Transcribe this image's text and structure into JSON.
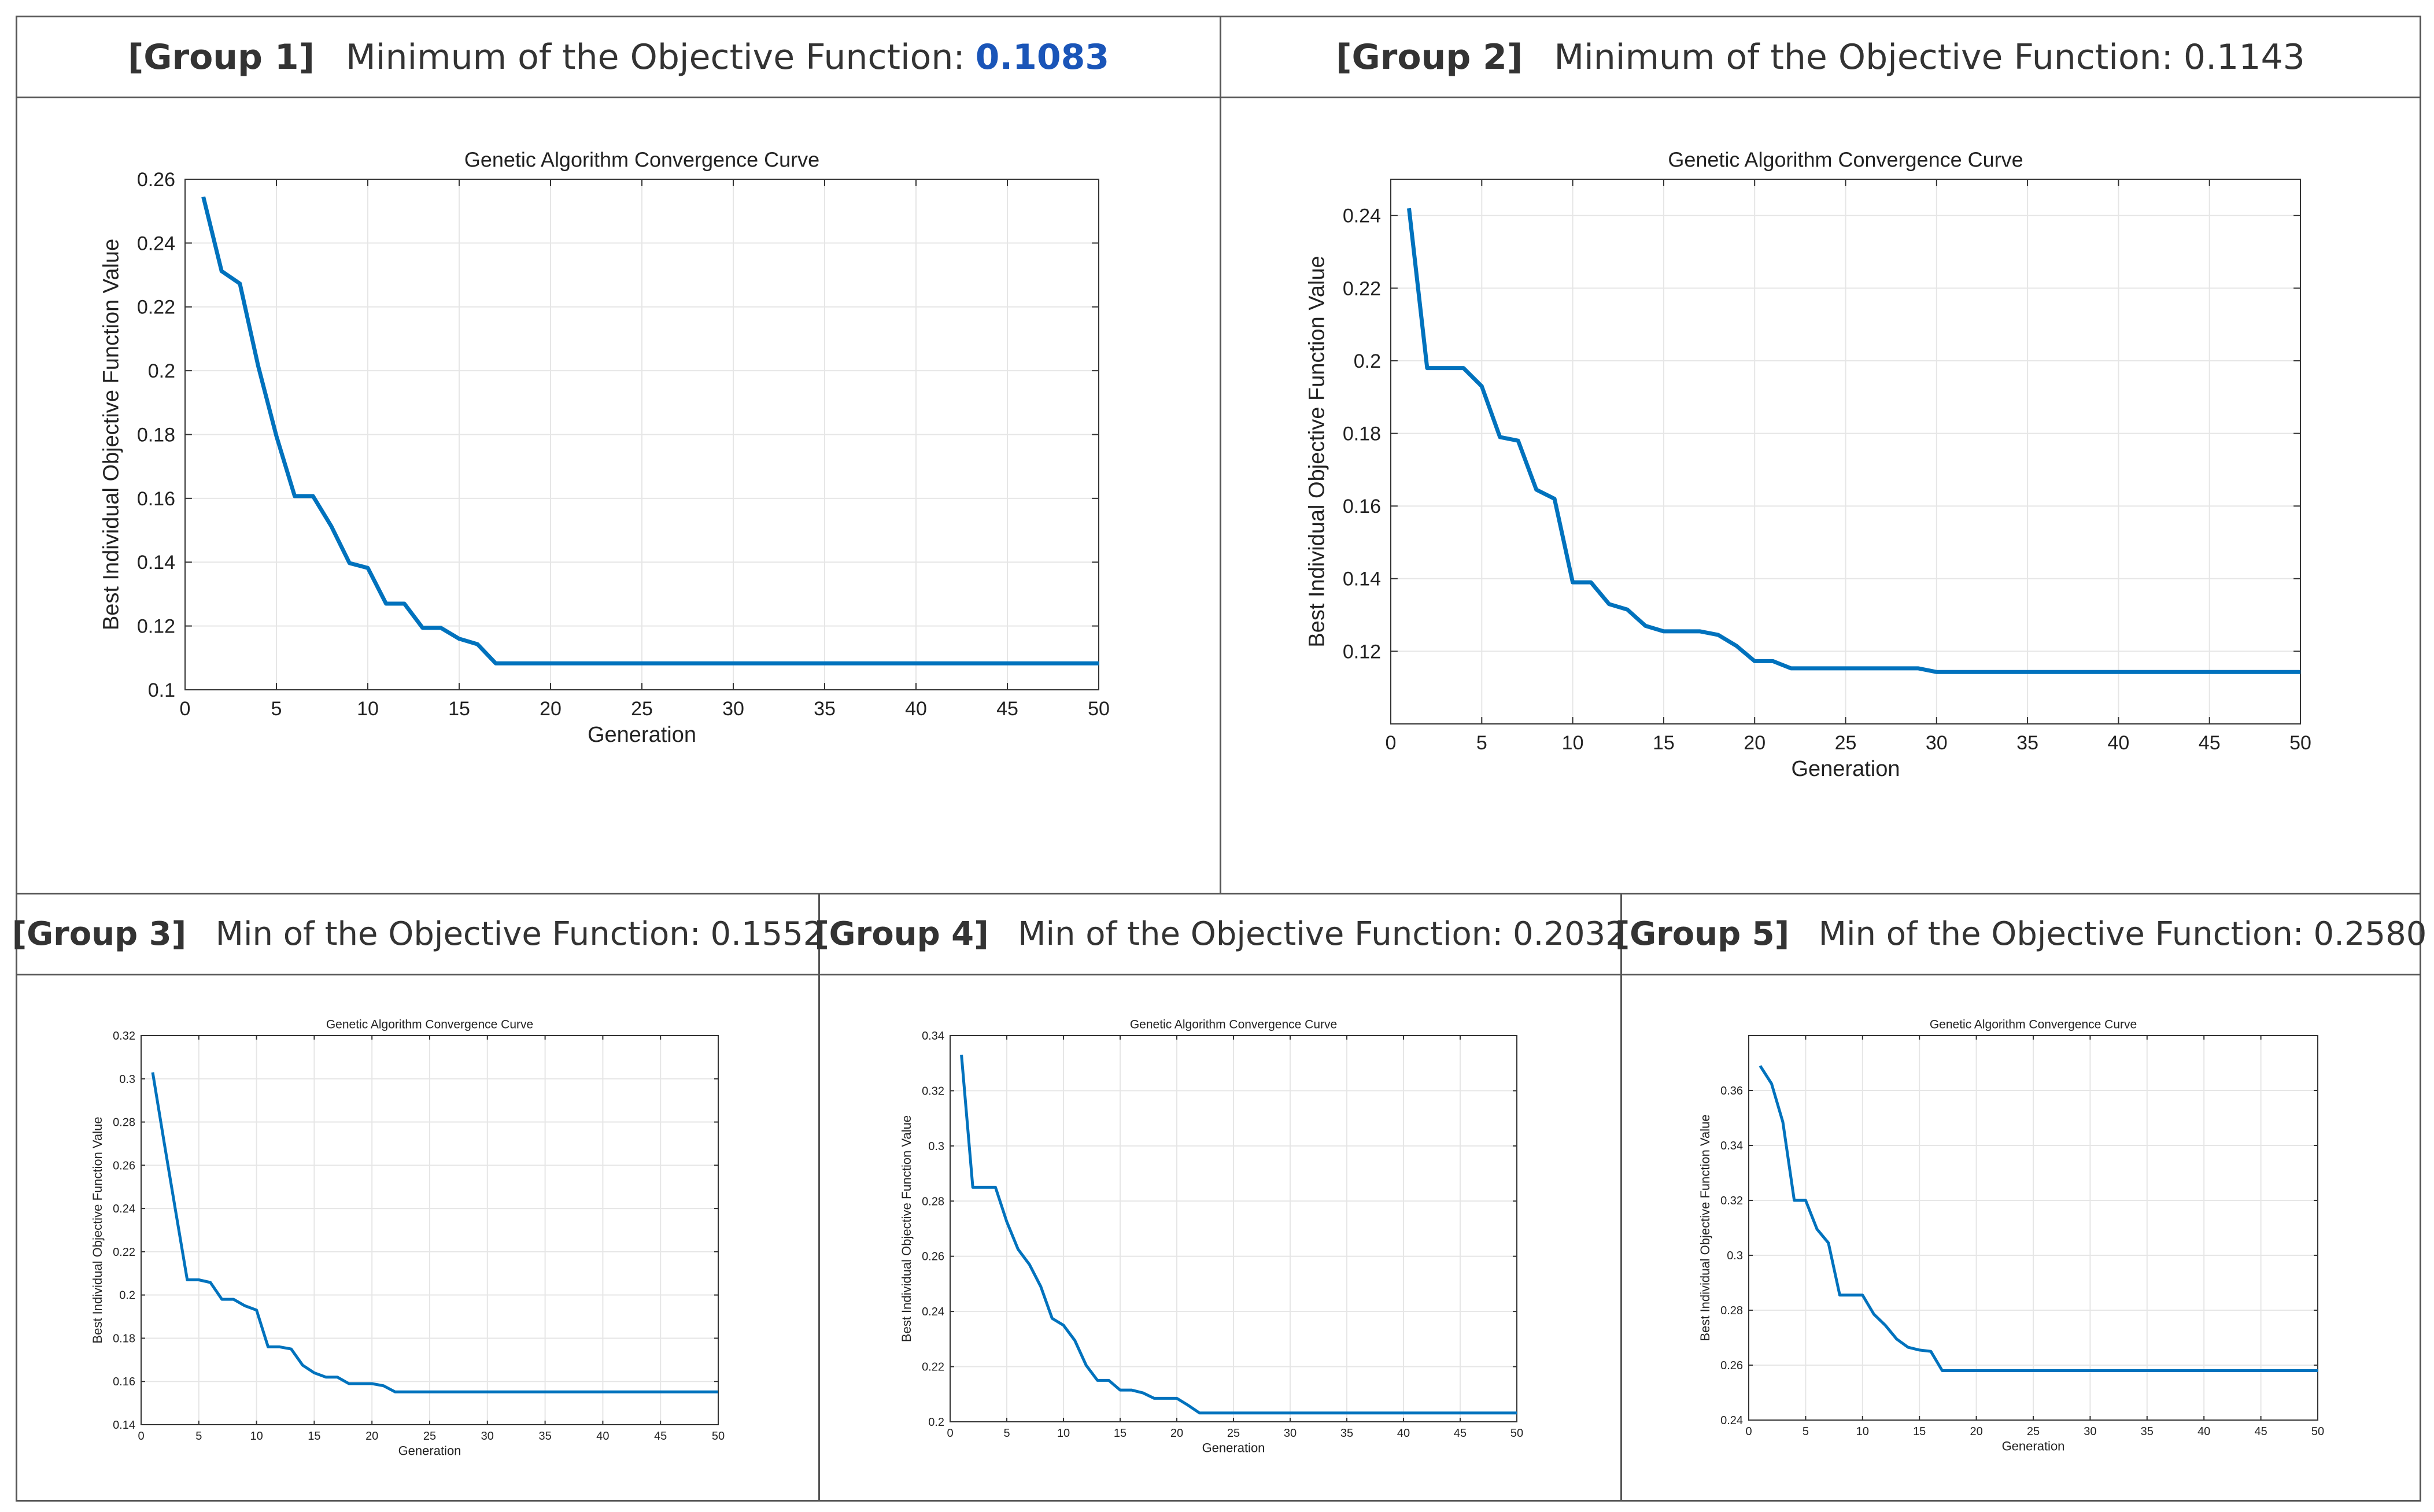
{
  "line_color": "#0072bd",
  "highlight_color": "#1a55b8",
  "chart_data": [
    {
      "group": "[Group 1]",
      "heading": "Minimum of the Objective Function:",
      "min_value": "0.1083",
      "highlight": true,
      "type": "line",
      "title": "Genetic Algorithm Convergence Curve",
      "xlabel": "Generation",
      "ylabel": "Best Individual Objective Function Value",
      "xlim": [
        0,
        50
      ],
      "ylim": [
        0.1,
        0.26
      ],
      "xticks": [
        0,
        5,
        10,
        15,
        20,
        25,
        30,
        35,
        40,
        45,
        50
      ],
      "yticks": [
        0.1,
        0.12,
        0.14,
        0.16,
        0.18,
        0.2,
        0.22,
        0.24,
        0.26
      ],
      "x": [
        1,
        2,
        3,
        4,
        5,
        6,
        7,
        8,
        9,
        10,
        11,
        12,
        13,
        14,
        15,
        16,
        17,
        18,
        50
      ],
      "y": [
        0.2545,
        0.2312,
        0.2273,
        0.2015,
        0.1795,
        0.1607,
        0.1607,
        0.1513,
        0.1397,
        0.1382,
        0.127,
        0.127,
        0.1194,
        0.1194,
        0.116,
        0.1143,
        0.1083,
        0.1083,
        0.1083
      ]
    },
    {
      "group": "[Group 2]",
      "heading": "Minimum of the Objective Function:",
      "min_value": "0.1143",
      "highlight": false,
      "type": "line",
      "title": "Genetic Algorithm Convergence Curve",
      "xlabel": "Generation",
      "ylabel": "Best Individual Objective Function Value",
      "xlim": [
        0,
        50
      ],
      "ylim": [
        0.1,
        0.25
      ],
      "xticks": [
        0,
        5,
        10,
        15,
        20,
        25,
        30,
        35,
        40,
        45,
        50
      ],
      "yticks": [
        0.12,
        0.14,
        0.16,
        0.18,
        0.2,
        0.22,
        0.24
      ],
      "x": [
        1,
        2,
        3,
        4,
        5,
        6,
        7,
        8,
        9,
        10,
        11,
        12,
        13,
        14,
        15,
        16,
        17,
        18,
        19,
        20,
        21,
        22,
        23,
        24,
        25,
        26,
        27,
        28,
        29,
        30,
        50
      ],
      "y": [
        0.242,
        0.198,
        0.198,
        0.198,
        0.193,
        0.179,
        0.178,
        0.1645,
        0.162,
        0.139,
        0.139,
        0.133,
        0.1315,
        0.127,
        0.1255,
        0.1255,
        0.1255,
        0.1245,
        0.1215,
        0.1173,
        0.1173,
        0.1153,
        0.1153,
        0.1153,
        0.1153,
        0.1153,
        0.1153,
        0.1153,
        0.1153,
        0.1143,
        0.1143
      ]
    },
    {
      "group": "[Group 3]",
      "heading": "Min of the Objective Function:",
      "min_value": "0.1552",
      "highlight": false,
      "type": "line",
      "title": "Genetic Algorithm Convergence Curve",
      "xlabel": "Generation",
      "ylabel": "Best Individual Objective Function Value",
      "xlim": [
        0,
        50
      ],
      "ylim": [
        0.14,
        0.32
      ],
      "xticks": [
        0,
        5,
        10,
        15,
        20,
        25,
        30,
        35,
        40,
        45,
        50
      ],
      "yticks": [
        0.14,
        0.16,
        0.18,
        0.2,
        0.22,
        0.24,
        0.26,
        0.28,
        0.3,
        0.32
      ],
      "x": [
        1,
        2,
        3,
        4,
        5,
        6,
        7,
        8,
        9,
        10,
        11,
        12,
        13,
        14,
        15,
        16,
        17,
        18,
        19,
        20,
        21,
        22,
        50
      ],
      "y": [
        0.303,
        0.2705,
        0.2385,
        0.207,
        0.207,
        0.2058,
        0.198,
        0.198,
        0.195,
        0.193,
        0.176,
        0.176,
        0.175,
        0.1675,
        0.164,
        0.162,
        0.162,
        0.159,
        0.159,
        0.159,
        0.158,
        0.1552,
        0.1552
      ]
    },
    {
      "group": "[Group 4]",
      "heading": "Min of the Objective Function:",
      "min_value": "0.2032",
      "highlight": false,
      "type": "line",
      "title": "Genetic Algorithm Convergence Curve",
      "xlabel": "Generation",
      "ylabel": "Best Individual Objective Function Value",
      "xlim": [
        0,
        50
      ],
      "ylim": [
        0.2,
        0.34
      ],
      "xticks": [
        0,
        5,
        10,
        15,
        20,
        25,
        30,
        35,
        40,
        45,
        50
      ],
      "yticks": [
        0.2,
        0.22,
        0.24,
        0.26,
        0.28,
        0.3,
        0.32,
        0.34
      ],
      "x": [
        1,
        2,
        3,
        4,
        5,
        6,
        7,
        8,
        9,
        10,
        11,
        12,
        13,
        14,
        15,
        16,
        17,
        18,
        19,
        20,
        21,
        22,
        50
      ],
      "y": [
        0.333,
        0.285,
        0.285,
        0.285,
        0.2725,
        0.2625,
        0.257,
        0.249,
        0.2375,
        0.235,
        0.2295,
        0.2205,
        0.215,
        0.215,
        0.2115,
        0.2115,
        0.2105,
        0.2085,
        0.2085,
        0.2085,
        0.206,
        0.2032,
        0.2032
      ]
    },
    {
      "group": "[Group 5]",
      "heading": "Min of the Objective Function:",
      "min_value": "0.2580",
      "highlight": false,
      "type": "line",
      "title": "Genetic Algorithm Convergence Curve",
      "xlabel": "Generation",
      "ylabel": "Best Individual Objective Function Value",
      "xlim": [
        0,
        50
      ],
      "ylim": [
        0.24,
        0.38
      ],
      "xticks": [
        0,
        5,
        10,
        15,
        20,
        25,
        30,
        35,
        40,
        45,
        50
      ],
      "yticks": [
        0.24,
        0.26,
        0.28,
        0.3,
        0.32,
        0.34,
        0.36
      ],
      "x": [
        1,
        2,
        3,
        4,
        5,
        6,
        7,
        8,
        9,
        10,
        11,
        12,
        13,
        14,
        15,
        16,
        17,
        50
      ],
      "y": [
        0.369,
        0.3625,
        0.3485,
        0.32,
        0.32,
        0.3095,
        0.3045,
        0.2855,
        0.2855,
        0.2855,
        0.2785,
        0.2745,
        0.2695,
        0.2665,
        0.2655,
        0.265,
        0.258,
        0.258
      ]
    }
  ]
}
